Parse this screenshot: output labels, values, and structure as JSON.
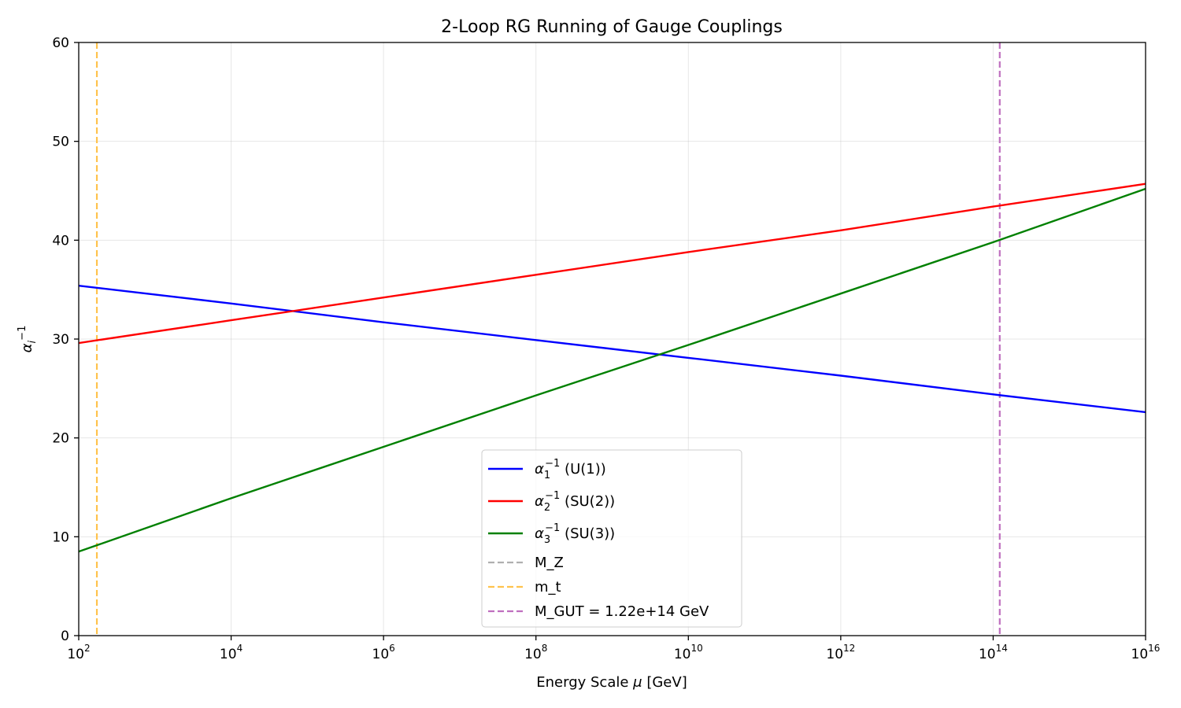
{
  "chart_data": {
    "type": "line",
    "title": "2-Loop RG Running of Gauge Couplings",
    "xlabel": "Energy Scale μ [GeV]",
    "ylabel": "α_i^-1",
    "xscale": "log",
    "xlim": [
      100,
      1e+16
    ],
    "ylim": [
      0,
      60
    ],
    "x_ticks": [
      {
        "value": 100,
        "base": "10",
        "exp": "2"
      },
      {
        "value": 10000.0,
        "base": "10",
        "exp": "4"
      },
      {
        "value": 1000000.0,
        "base": "10",
        "exp": "6"
      },
      {
        "value": 100000000.0,
        "base": "10",
        "exp": "8"
      },
      {
        "value": 10000000000.0,
        "base": "10",
        "exp": "10"
      },
      {
        "value": 1000000000000.0,
        "base": "10",
        "exp": "12"
      },
      {
        "value": 100000000000000.0,
        "base": "10",
        "exp": "14"
      },
      {
        "value": 1e+16,
        "base": "10",
        "exp": "16"
      }
    ],
    "y_ticks": [
      0,
      10,
      20,
      30,
      40,
      50,
      60
    ],
    "grid": true,
    "legend_position": "lower-center",
    "series": [
      {
        "name": "α₁⁻¹ (U(1))",
        "legend_main": "α",
        "legend_sub": "1",
        "legend_sup": "−1",
        "legend_rest": " (U(1))",
        "color": "#0000ff",
        "style": "solid",
        "x": [
          100,
          10000.0,
          1000000.0,
          100000000.0,
          10000000000.0,
          1000000000000.0,
          100000000000000.0,
          1e+16
        ],
        "y": [
          35.4,
          33.6,
          31.7,
          29.9,
          28.1,
          26.3,
          24.4,
          22.6
        ]
      },
      {
        "name": "α₂⁻¹ (SU(2))",
        "legend_main": "α",
        "legend_sub": "2",
        "legend_sup": "−1",
        "legend_rest": " (SU(2))",
        "color": "#ff0000",
        "style": "solid",
        "x": [
          100,
          10000.0,
          1000000.0,
          100000000.0,
          10000000000.0,
          1000000000000.0,
          100000000000000.0,
          1e+16
        ],
        "y": [
          29.6,
          31.9,
          34.2,
          36.5,
          38.8,
          41.0,
          43.4,
          45.7
        ]
      },
      {
        "name": "α₃⁻¹ (SU(3))",
        "legend_main": "α",
        "legend_sub": "3",
        "legend_sup": "−1",
        "legend_rest": " (SU(3))",
        "color": "#008000",
        "style": "solid",
        "x": [
          100,
          10000.0,
          1000000.0,
          100000000.0,
          10000000000.0,
          1000000000000.0,
          100000000000000.0,
          1e+16
        ],
        "y": [
          8.5,
          13.9,
          19.1,
          24.3,
          29.4,
          34.6,
          39.8,
          45.2
        ]
      }
    ],
    "vlines": [
      {
        "name": "M_Z",
        "x": 91.19,
        "color": "#b0b0b0",
        "style": "dashed"
      },
      {
        "name": "m_t",
        "x": 173,
        "color": "#ffc34d",
        "style": "dashed"
      },
      {
        "name": "M_GUT = 1.22e+14 GeV",
        "x": 122000000000000.0,
        "color": "#bf6fbf",
        "style": "dashed"
      }
    ]
  }
}
